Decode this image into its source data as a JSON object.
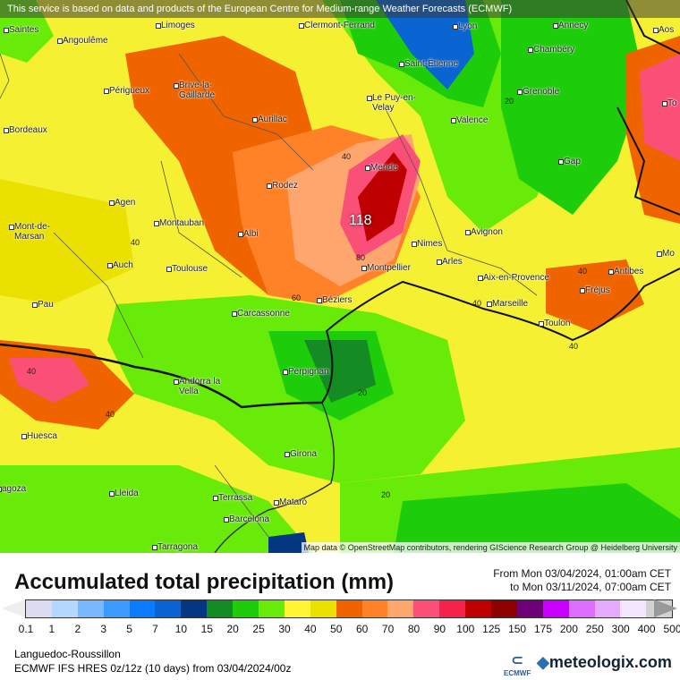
{
  "banner": "This service is based on data and products of the European Centre for Medium-range Weather Forecasts (ECMWF)",
  "attribution": "Map data © OpenStreetMap contributors, rendering GIScience Research Group @ Heidelberg University",
  "cities": [
    "Saintes",
    "Angoulême",
    "Limoges",
    "Clermont-Ferrand",
    "Lyon",
    "Annecy",
    "Aos",
    "Chambéry",
    "Saint-Étienne",
    "Périgueux",
    "Brive-la-Gaillarde",
    "Grenoble",
    "Le Puy-en-Velay",
    "Bordeaux",
    "Aurillac",
    "Valence",
    "Gap",
    "Mende",
    "Rodez",
    "Agen",
    "Montauban",
    "Albi",
    "Mont-de-Marsan",
    "Nimes",
    "Avignon",
    "Auch",
    "Toulouse",
    "Montpellier",
    "Arles",
    "Aix-en-Provence",
    "Antibes",
    "Fréjus",
    "Pau",
    "Carcassonne",
    "Béziers",
    "Marseille",
    "Toulon",
    "Perpignan",
    "Andorra la Vella",
    "Huesca",
    "Girona",
    "Lleida",
    "Terrassa",
    "Mataró",
    "Barcelona",
    "Tarragona",
    "agoza",
    "To",
    "Mo"
  ],
  "contours": {
    "max": "118",
    "l40a": "40",
    "l40b": "40",
    "l80": "80",
    "l60": "60",
    "l20a": "20",
    "l20b": "20",
    "l20c": "20",
    "l40c": "40",
    "l40d": "40",
    "l40e": "40",
    "l40f": "40",
    "l40g": "40"
  },
  "legend": {
    "title": "Accumulated total precipitation (mm)",
    "from": "From Mon 03/04/2024, 01:00am CET",
    "to": "to Mon 03/11/2024, 07:00am CET",
    "ticks": [
      "0.1",
      "1",
      "2",
      "3",
      "5",
      "7",
      "10",
      "15",
      "20",
      "25",
      "30",
      "40",
      "50",
      "60",
      "70",
      "80",
      "90",
      "100",
      "125",
      "150",
      "175",
      "200",
      "250",
      "300",
      "400",
      "500"
    ],
    "colors": [
      "#dcdcf0",
      "#b4d7ff",
      "#78b9ff",
      "#3c9bff",
      "#0a7dff",
      "#0a64d2",
      "#043782",
      "#148c23",
      "#1ecd0a",
      "#69eb0a",
      "#fff532",
      "#ebe100",
      "#f06400",
      "#ff8228",
      "#ffa56e",
      "#fa5078",
      "#f5234b",
      "#be0000",
      "#8c0000",
      "#6e0078",
      "#c800ff",
      "#dc6eff",
      "#e6aaff",
      "#f5e6ff",
      "#d2d2d2"
    ]
  },
  "region": "Languedoc-Roussillon",
  "model": "ECMWF IFS HRES 0z/12z (10 days) from  03/04/2024/00z",
  "logos": {
    "ecmwf": "ECMWF",
    "meteologix": "meteologix.com"
  }
}
